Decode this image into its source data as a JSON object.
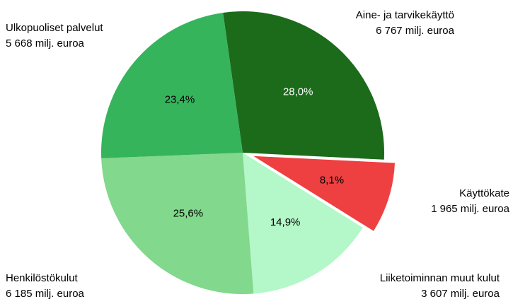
{
  "chart_data": {
    "type": "pie",
    "categories": [
      "Aine- ja tarvikekäyttö",
      "Käyttökate",
      "Liiketoiminnan muut kulut",
      "Henkilöstökulut",
      "Ulkopuoliset palvelut"
    ],
    "amount_labels": [
      "6 767 milj. euroa",
      "1 965 milj. euroa",
      "3 607 milj. euroa",
      "6 185 milj. euroa",
      "5 668 milj. euroa"
    ],
    "values": [
      28.0,
      8.1,
      14.9,
      25.6,
      23.4
    ],
    "value_labels": [
      "28,0%",
      "8,1%",
      "14,9%",
      "25,6%",
      "23,4%"
    ],
    "colors": [
      "#1b6b1b",
      "#ee4040",
      "#b4f7c8",
      "#82d88c",
      "#35b45c"
    ],
    "exploded": [
      false,
      true,
      false,
      false,
      false
    ]
  }
}
